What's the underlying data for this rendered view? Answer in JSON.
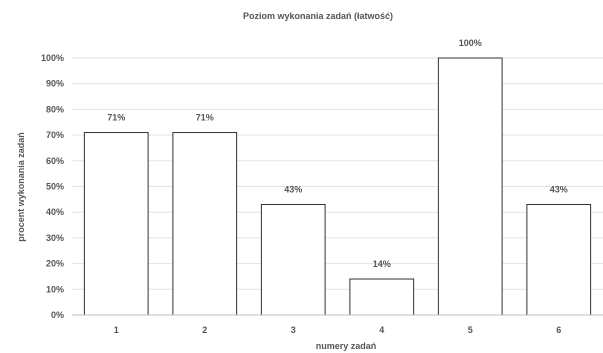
{
  "chart_data": {
    "type": "bar",
    "title": "Poziom wykonania zadań (łatwość)",
    "xlabel": "numery zadań",
    "ylabel": "procent wykonania zadań",
    "categories": [
      "1",
      "2",
      "3",
      "4",
      "5",
      "6"
    ],
    "values": [
      71,
      71,
      43,
      14,
      100,
      43
    ],
    "data_labels": [
      "71%",
      "71%",
      "43%",
      "14%",
      "100%",
      "43%"
    ],
    "ylim": [
      0,
      100
    ],
    "y_ticks": [
      "0%",
      "10%",
      "20%",
      "30%",
      "40%",
      "50%",
      "60%",
      "70%",
      "80%",
      "90%",
      "100%"
    ],
    "grid": true,
    "legend": "none",
    "colors": {
      "bar_fill": "#ffffff",
      "bar_stroke": "#333333",
      "grid": "#e3e3e3",
      "text": "#555555"
    }
  }
}
